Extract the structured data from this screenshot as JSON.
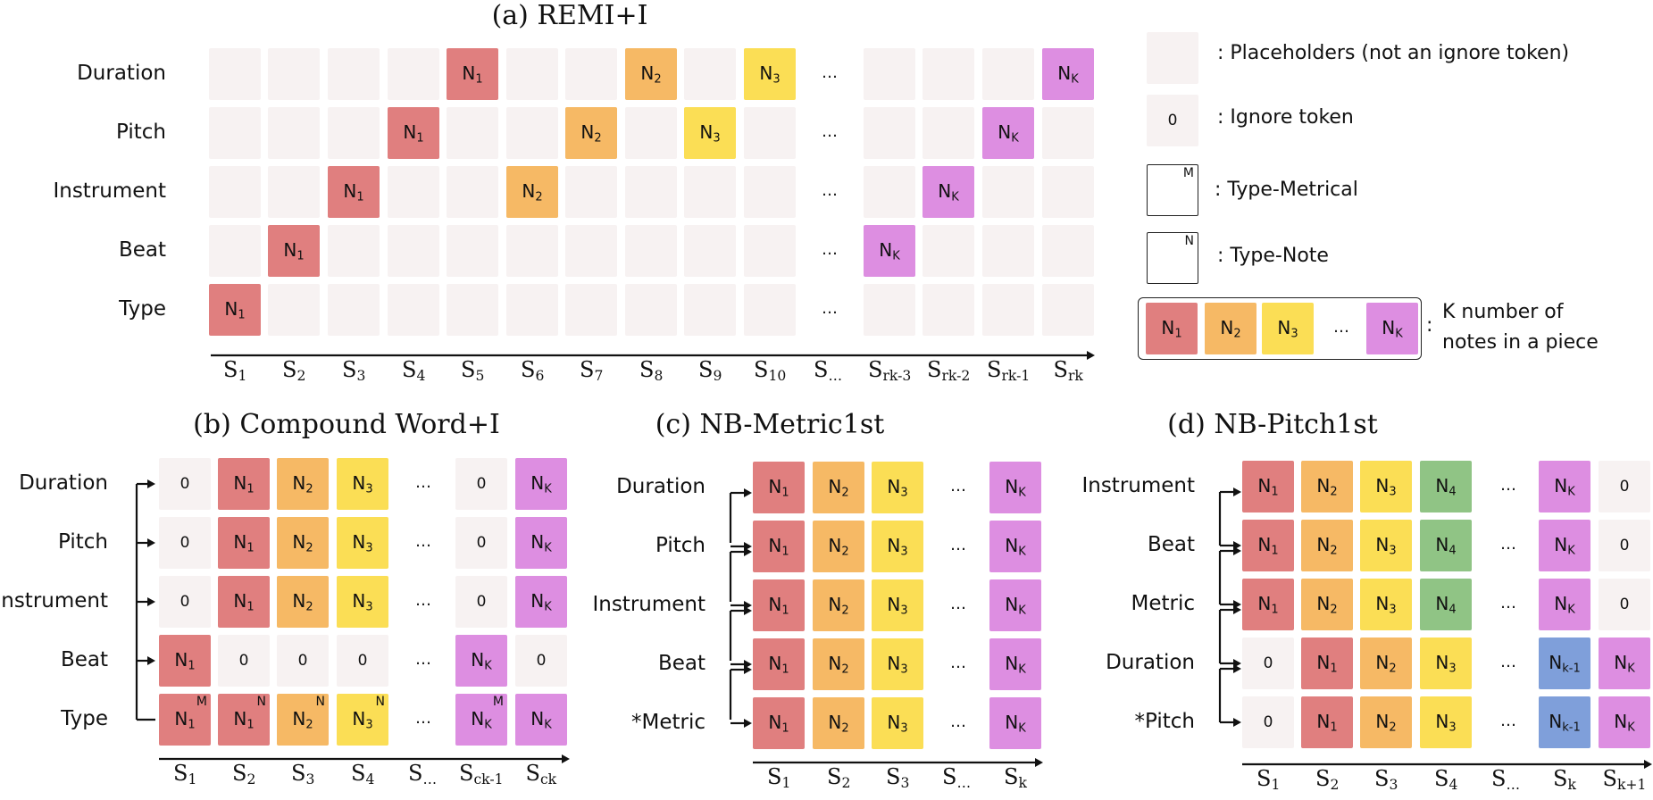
{
  "legend": {
    "placeholder": ": Placeholders (not an ignore token)",
    "ignore_symbol": "0",
    "ignore": ": Ignore token",
    "metrical_symbol": "M",
    "metrical": ": Type-Metrical",
    "note_symbol": "N",
    "note": ": Type-Note",
    "notes_line1": "K number of",
    "notes_line2": "notes in a piece",
    "colon": ":"
  },
  "note_labels": {
    "n1": "1",
    "n2": "2",
    "n3": "3",
    "n4": "4",
    "nk": "K",
    "nk1": "k-1"
  },
  "colors": {
    "n1": "#e07f7f",
    "n2": "#f6b965",
    "n3": "#fbde55",
    "n4": "#90c485",
    "nk": "#dd8ee1",
    "nk1": "#7f9fda",
    "placeholder": "#f7f2f2"
  },
  "panels": [
    {
      "id": "a",
      "title": "(a) REMI+I",
      "rows": [
        "Duration",
        "Pitch",
        "Instrument",
        "Beat",
        "Type"
      ],
      "columns": [
        {
          "base": "S",
          "sub": "1"
        },
        {
          "base": "S",
          "sub": "2"
        },
        {
          "base": "S",
          "sub": "3"
        },
        {
          "base": "S",
          "sub": "4"
        },
        {
          "base": "S",
          "sub": "5"
        },
        {
          "base": "S",
          "sub": "6"
        },
        {
          "base": "S",
          "sub": "7"
        },
        {
          "base": "S",
          "sub": "8"
        },
        {
          "base": "S",
          "sub": "9"
        },
        {
          "base": "S",
          "sub": "10"
        },
        {
          "base": "S",
          "sub": "…"
        },
        {
          "base": "S",
          "sub": "rk-3"
        },
        {
          "base": "S",
          "sub": "rk-2"
        },
        {
          "base": "S",
          "sub": "rk-1"
        },
        {
          "base": "S",
          "sub": "rk"
        }
      ],
      "ellipsis": "…"
    },
    {
      "id": "b",
      "title": "(b) Compound Word+I",
      "rows": [
        "Duration",
        "Pitch",
        "Instrument",
        "Beat",
        "Type"
      ],
      "columns": [
        {
          "base": "S",
          "sub": "1"
        },
        {
          "base": "S",
          "sub": "2"
        },
        {
          "base": "S",
          "sub": "3"
        },
        {
          "base": "S",
          "sub": "4"
        },
        {
          "base": "S",
          "sub": "…"
        },
        {
          "base": "S",
          "sub": "ck-1"
        },
        {
          "base": "S",
          "sub": "ck"
        }
      ],
      "ellipsis": "…"
    },
    {
      "id": "c",
      "title": "(c) NB-Metric1st",
      "rows": [
        "Duration",
        "Pitch",
        "Instrument",
        "Beat",
        "*Metric"
      ],
      "columns": [
        {
          "base": "S",
          "sub": "1"
        },
        {
          "base": "S",
          "sub": "2"
        },
        {
          "base": "S",
          "sub": "3"
        },
        {
          "base": "S",
          "sub": "…"
        },
        {
          "base": "S",
          "sub": "k"
        }
      ],
      "ellipsis": "…"
    },
    {
      "id": "d",
      "title": "(d) NB-Pitch1st",
      "rows": [
        "Instrument",
        "Beat",
        "Metric",
        "Duration",
        "*Pitch"
      ],
      "columns": [
        {
          "base": "S",
          "sub": "1"
        },
        {
          "base": "S",
          "sub": "2"
        },
        {
          "base": "S",
          "sub": "3"
        },
        {
          "base": "S",
          "sub": "4"
        },
        {
          "base": "S",
          "sub": "…"
        },
        {
          "base": "S",
          "sub": "k"
        },
        {
          "base": "S",
          "sub": "k+1"
        }
      ],
      "ellipsis": "…"
    }
  ]
}
